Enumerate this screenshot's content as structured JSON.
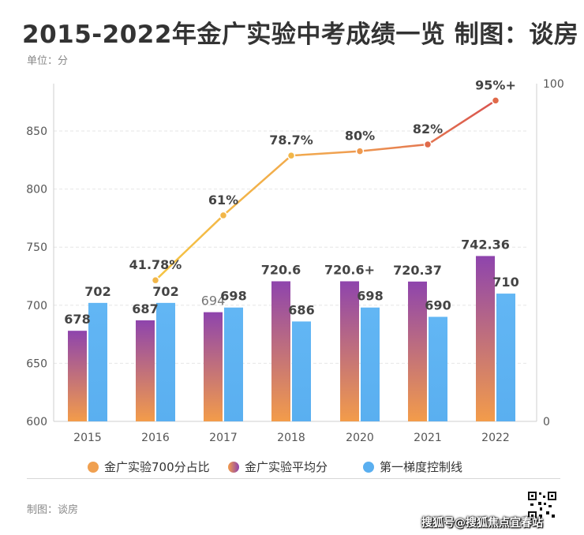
{
  "header": {
    "title": "2015-2022年金广实验中考成绩一览 制图：谈房",
    "unit": "单位：分"
  },
  "footer": {
    "credit": "制图：谈房",
    "watermark": "搜狐号@搜狐焦点宜春站"
  },
  "colors": {
    "avg_bar_top": "#8e44ad",
    "avg_bar_bottom": "#f39c4a",
    "control_bar": "#5aaff0",
    "line_start": "#f5c542",
    "line_end": "#d9534f",
    "grid": "#e6e6e6"
  },
  "chart_data": {
    "type": "bar",
    "categories": [
      "2015",
      "2016",
      "2017",
      "2018",
      "2020",
      "2021",
      "2022"
    ],
    "ylim": [
      600,
      880
    ],
    "y_ticks": [
      "600",
      "650",
      "700",
      "750",
      "800",
      "850"
    ],
    "y2lim": [
      0,
      100
    ],
    "y2_ticks": [
      "0",
      "100"
    ],
    "grid": true,
    "legend_position": "bottom",
    "series": [
      {
        "name": "金广实验700分占比",
        "type": "line",
        "axis": "right",
        "values": [
          null,
          41.78,
          61,
          78.7,
          80,
          82,
          95
        ],
        "labels": [
          "",
          "41.78%",
          "61%",
          "78.7%",
          "80%",
          "82%",
          "95%+"
        ]
      },
      {
        "name": "金广实验平均分",
        "type": "bar",
        "axis": "left",
        "values": [
          678,
          687,
          694,
          720.6,
          720.6,
          720.37,
          742.36
        ],
        "labels": [
          "678",
          "687",
          "694",
          "720.6",
          "720.6+",
          "720.37",
          "742.36"
        ]
      },
      {
        "name": "第一梯度控制线",
        "type": "bar",
        "axis": "left",
        "values": [
          702,
          702,
          698,
          686,
          698,
          690,
          710
        ],
        "labels": [
          "702",
          "702",
          "698",
          "686",
          "698",
          "690",
          "710"
        ]
      }
    ]
  }
}
